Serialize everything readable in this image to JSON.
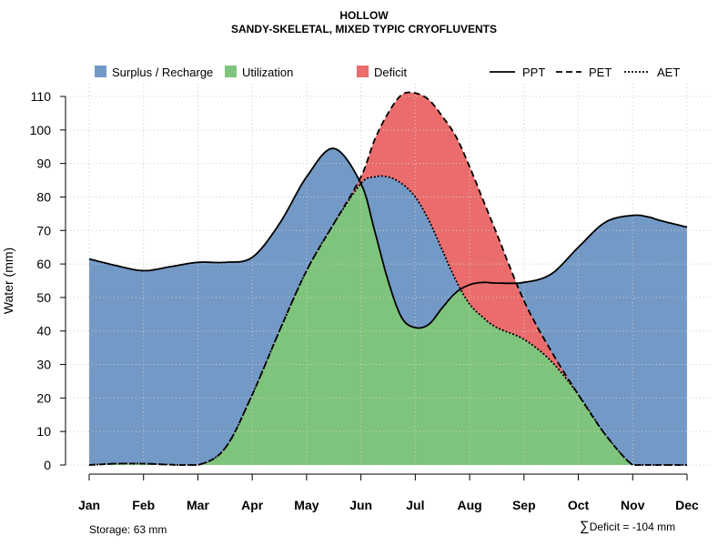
{
  "header": {
    "title": "HOLLOW",
    "subtitle": "SANDY-SKELETAL, MIXED TYPIC CRYOFLUVENTS"
  },
  "notes": {
    "storage": "Storage: 63 mm",
    "deficit": "Deficit = -104 mm",
    "sum_symbol": "∑"
  },
  "colors": {
    "surplus": "#7399C6",
    "utilization": "#7FC47C",
    "deficit": "#EB6C6C",
    "grid": "#cccccc",
    "axis": "#000000"
  },
  "chart_data": {
    "type": "area",
    "title": "HOLLOW",
    "subtitle": "SANDY-SKELETAL, MIXED TYPIC CRYOFLUVENTS",
    "xlabel": "",
    "ylabel": "Water (mm)",
    "ylim": [
      0,
      110
    ],
    "yticks": [
      0,
      10,
      20,
      30,
      40,
      50,
      60,
      70,
      80,
      90,
      100,
      110
    ],
    "grid": true,
    "legend_position": "top",
    "categories": [
      "Jan",
      "Feb",
      "Mar",
      "Apr",
      "May",
      "Jun",
      "Jul",
      "Aug",
      "Sep",
      "Oct",
      "Nov",
      "Dec"
    ],
    "x": [
      1,
      1.5,
      2,
      2.5,
      3,
      3.5,
      4,
      4.5,
      5,
      5.5,
      6,
      6.25,
      6.5,
      6.75,
      7,
      7.25,
      7.5,
      7.75,
      8,
      8.25,
      8.5,
      9,
      9.5,
      10,
      10.5,
      11,
      11.3,
      11.5,
      12
    ],
    "series": [
      {
        "name": "PPT",
        "line_style": "solid",
        "values": [
          61.5,
          59.5,
          58,
          59.2,
          60.5,
          60.5,
          62,
          72,
          86,
          94.5,
          84,
          70,
          55,
          44,
          41,
          42,
          47,
          51.5,
          53.8,
          54.5,
          54.3,
          54.5,
          57,
          65,
          72.5,
          74.5,
          74,
          73,
          71
        ]
      },
      {
        "name": "PET",
        "line_style": "dashed",
        "values": [
          0,
          0.4,
          0.4,
          0.1,
          0,
          5,
          21,
          40,
          58,
          72,
          86,
          97,
          105,
          110.5,
          111,
          109,
          104,
          98,
          89,
          79,
          69,
          49,
          34,
          21,
          9,
          0,
          0,
          0,
          0
        ]
      },
      {
        "name": "AET",
        "line_style": "dotted",
        "values": [
          0,
          0.4,
          0.4,
          0.1,
          0,
          5,
          21,
          40,
          58,
          72,
          84,
          86,
          86,
          84,
          80,
          73,
          64,
          55,
          48,
          44,
          41,
          37.5,
          31,
          21,
          9,
          0,
          0,
          0,
          0
        ]
      }
    ],
    "fill_regions": [
      "Surplus / Recharge",
      "Utilization",
      "Deficit"
    ],
    "legend": {
      "fills": [
        "Surplus / Recharge",
        "Utilization",
        "Deficit"
      ],
      "lines": [
        "PPT",
        "PET",
        "AET"
      ]
    }
  }
}
